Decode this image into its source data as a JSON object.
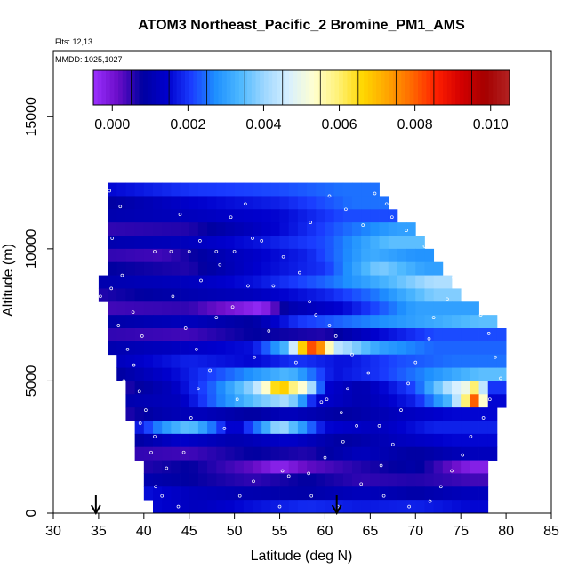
{
  "chart_data": {
    "type": "heatmap",
    "title": "ATOM3 Northeast_Pacific_2 Bromine_PM1_AMS",
    "notes": [
      "Flts: 12,13",
      "MMDD: 1025,1027"
    ],
    "xlabel": "Latitude (deg N)",
    "ylabel": "Altitude (m)",
    "xlim": [
      30,
      85
    ],
    "ylim": [
      0,
      17500
    ],
    "x_ticks": [
      "30",
      "35",
      "40",
      "45",
      "50",
      "55",
      "60",
      "65",
      "70",
      "75",
      "80",
      "85"
    ],
    "y_ticks": [
      "0",
      "5000",
      "10000",
      "15000"
    ],
    "colorbar": {
      "min": -0.0005,
      "max": 0.0105,
      "ticks": [
        "0.000",
        "0.002",
        "0.004",
        "0.006",
        "0.008",
        "0.010"
      ],
      "colors": [
        "#9b30ff",
        "#6a0dc8",
        "#0000a0",
        "#0000cd",
        "#1a3cff",
        "#1e90ff",
        "#4db8ff",
        "#9fd8ff",
        "#d8f0ff",
        "#ffffd0",
        "#fff176",
        "#ffd700",
        "#ffa500",
        "#ff6a00",
        "#ff2000",
        "#d40000",
        "#a50000",
        "#b22222"
      ]
    },
    "arrows_at_latitude": [
      34.7,
      61.3
    ],
    "lat_bin_width": 1,
    "alt_bin_height": 500,
    "rows": [
      {
        "alt": 12250,
        "lat_min": 36,
        "lat_max": 66,
        "values": [
          [
            36,
            0.0015
          ],
          [
            45,
            0.002
          ],
          [
            55,
            0.0022
          ],
          [
            62,
            0.0025
          ]
        ]
      },
      {
        "alt": 11750,
        "lat_min": 36,
        "lat_max": 67,
        "values": [
          [
            36,
            0.0008
          ],
          [
            45,
            0.0014
          ],
          [
            55,
            0.0018
          ],
          [
            63,
            0.0025
          ]
        ]
      },
      {
        "alt": 11250,
        "lat_min": 36,
        "lat_max": 68,
        "values": [
          [
            36,
            0.001
          ],
          [
            45,
            0.0012
          ],
          [
            55,
            0.0015
          ],
          [
            62,
            0.0022
          ]
        ]
      },
      {
        "alt": 10750,
        "lat_min": 36,
        "lat_max": 70,
        "values": [
          [
            36,
            0.0005
          ],
          [
            45,
            0.0006
          ],
          [
            55,
            0.0015
          ],
          [
            62,
            0.0024
          ],
          [
            68,
            0.003
          ]
        ]
      },
      {
        "alt": 10250,
        "lat_min": 36,
        "lat_max": 71,
        "values": [
          [
            36,
            0.001
          ],
          [
            45,
            0.0012
          ],
          [
            52,
            0.0016
          ],
          [
            60,
            0.0022
          ],
          [
            67,
            0.0035
          ]
        ]
      },
      {
        "alt": 9750,
        "lat_min": 36,
        "lat_max": 72,
        "values": [
          [
            36,
            0.0005
          ],
          [
            42,
            0.0004
          ],
          [
            50,
            0.0012
          ],
          [
            58,
            0.0018
          ],
          [
            65,
            0.0032
          ],
          [
            70,
            0.0028
          ]
        ]
      },
      {
        "alt": 9250,
        "lat_min": 36,
        "lat_max": 73,
        "values": [
          [
            36,
            0.0008
          ],
          [
            45,
            0.0006
          ],
          [
            52,
            0.0014
          ],
          [
            60,
            0.002
          ],
          [
            66,
            0.0038
          ],
          [
            71,
            0.003
          ]
        ]
      },
      {
        "alt": 8750,
        "lat_min": 35,
        "lat_max": 74,
        "values": [
          [
            35,
            0.001
          ],
          [
            45,
            0.0012
          ],
          [
            52,
            0.0016
          ],
          [
            60,
            0.0024
          ],
          [
            66,
            0.0032
          ],
          [
            72,
            0.0042
          ]
        ]
      },
      {
        "alt": 8250,
        "lat_min": 35,
        "lat_max": 75,
        "values": [
          [
            35,
            0.0006
          ],
          [
            45,
            0.001
          ],
          [
            52,
            0.0012
          ],
          [
            60,
            0.0018
          ],
          [
            66,
            0.0026
          ],
          [
            72,
            0.0038
          ]
        ]
      },
      {
        "alt": 7750,
        "lat_min": 36,
        "lat_max": 77,
        "values": [
          [
            36,
            0.0004
          ],
          [
            45,
            0.0005
          ],
          [
            53,
            -0.0004
          ],
          [
            56,
            0.001
          ],
          [
            62,
            0.0015
          ],
          [
            70,
            0.003
          ]
        ]
      },
      {
        "alt": 7250,
        "lat_min": 36,
        "lat_max": 79,
        "values": [
          [
            36,
            0.0009
          ],
          [
            45,
            0.0012
          ],
          [
            52,
            0.0008
          ],
          [
            57,
            0.002
          ],
          [
            63,
            0.0025
          ],
          [
            70,
            0.003
          ],
          [
            77,
            0.0035
          ]
        ]
      },
      {
        "alt": 6750,
        "lat_min": 36,
        "lat_max": 80,
        "values": [
          [
            36,
            0.0005
          ],
          [
            45,
            0.0004
          ],
          [
            52,
            0.0008
          ],
          [
            60,
            0.0006
          ],
          [
            66,
            0.0015
          ],
          [
            72,
            0.0022
          ]
        ]
      },
      {
        "alt": 6250,
        "lat_min": 36,
        "lat_max": 80,
        "values": [
          [
            36,
            0.001
          ],
          [
            45,
            0.0013
          ],
          [
            52,
            0.0016
          ],
          [
            56,
            0.0035
          ],
          [
            58,
            0.0078
          ],
          [
            59,
            0.0085
          ],
          [
            60,
            0.0065
          ],
          [
            61,
            0.0045
          ],
          [
            66,
            0.003
          ],
          [
            72,
            0.0024
          ]
        ]
      },
      {
        "alt": 5750,
        "lat_min": 37,
        "lat_max": 80,
        "values": [
          [
            37,
            0.0012
          ],
          [
            45,
            0.0018
          ],
          [
            52,
            0.0015
          ],
          [
            57,
            0.002
          ],
          [
            62,
            0.0016
          ],
          [
            68,
            0.0022
          ],
          [
            74,
            0.0025
          ]
        ]
      },
      {
        "alt": 5250,
        "lat_min": 37,
        "lat_max": 80,
        "values": [
          [
            37,
            0.0008
          ],
          [
            44,
            0.0016
          ],
          [
            50,
            0.0025
          ],
          [
            56,
            0.0034
          ],
          [
            61,
            0.0016
          ],
          [
            66,
            0.002
          ],
          [
            72,
            0.0028
          ],
          [
            77,
            0.0035
          ]
        ]
      },
      {
        "alt": 4750,
        "lat_min": 38,
        "lat_max": 80,
        "values": [
          [
            38,
            0.0006
          ],
          [
            43,
            0.0012
          ],
          [
            48,
            0.0025
          ],
          [
            52,
            0.004
          ],
          [
            54,
            0.0058
          ],
          [
            55,
            0.0072
          ],
          [
            56,
            0.0062
          ],
          [
            58,
            0.005
          ],
          [
            60,
            0.0015
          ],
          [
            64,
            0.001
          ],
          [
            70,
            0.0022
          ],
          [
            74,
            0.0045
          ],
          [
            76,
            0.0052
          ],
          [
            77,
            0.0068
          ],
          [
            78,
            0.002
          ]
        ]
      },
      {
        "alt": 4250,
        "lat_min": 38,
        "lat_max": 80,
        "values": [
          [
            38,
            0.001
          ],
          [
            44,
            0.0012
          ],
          [
            48,
            0.0025
          ],
          [
            52,
            0.0035
          ],
          [
            56,
            0.0042
          ],
          [
            59,
            0.0015
          ],
          [
            64,
            0.001
          ],
          [
            70,
            0.0018
          ],
          [
            74,
            0.0035
          ],
          [
            76,
            0.0068
          ],
          [
            77,
            0.0092
          ],
          [
            78,
            0.0015
          ]
        ]
      },
      {
        "alt": 3750,
        "lat_min": 38,
        "lat_max": 79,
        "values": [
          [
            38,
            0.0006
          ],
          [
            42,
            0.001
          ],
          [
            46,
            0.0012
          ],
          [
            52,
            0.0008
          ],
          [
            56,
            0.0012
          ],
          [
            62,
            0.0008
          ],
          [
            68,
            0.0012
          ],
          [
            74,
            0.0015
          ]
        ]
      },
      {
        "alt": 3250,
        "lat_min": 39,
        "lat_max": 79,
        "values": [
          [
            39,
            0.0015
          ],
          [
            42,
            0.0028
          ],
          [
            45,
            0.0036
          ],
          [
            47,
            0.0028
          ],
          [
            50,
            0.0012
          ],
          [
            53,
            0.0028
          ],
          [
            55,
            0.0042
          ],
          [
            57,
            0.0032
          ],
          [
            60,
            0.0015
          ],
          [
            66,
            0.0012
          ],
          [
            72,
            0.0018
          ]
        ]
      },
      {
        "alt": 2750,
        "lat_min": 39,
        "lat_max": 79,
        "values": [
          [
            39,
            0.0008
          ],
          [
            44,
            0.0014
          ],
          [
            50,
            0.001
          ],
          [
            56,
            0.0014
          ],
          [
            62,
            0.0008
          ],
          [
            68,
            0.0012
          ],
          [
            74,
            0.0015
          ]
        ]
      },
      {
        "alt": 2250,
        "lat_min": 39,
        "lat_max": 79,
        "values": [
          [
            39,
            0.0005
          ],
          [
            45,
            0.0004
          ],
          [
            52,
            0.0008
          ],
          [
            58,
            0.0006
          ],
          [
            64,
            0.0012
          ],
          [
            70,
            0.0008
          ],
          [
            76,
            0.0012
          ]
        ]
      },
      {
        "alt": 1750,
        "lat_min": 40,
        "lat_max": 78,
        "values": [
          [
            40,
            0.0006
          ],
          [
            45,
            0.0008
          ],
          [
            52,
            0.0002
          ],
          [
            55,
            -0.0003
          ],
          [
            58,
            0.0002
          ],
          [
            64,
            0.0006
          ],
          [
            70,
            0.0009
          ],
          [
            76,
            -0.0002
          ]
        ]
      },
      {
        "alt": 1250,
        "lat_min": 40,
        "lat_max": 78,
        "values": [
          [
            40,
            0.001
          ],
          [
            45,
            0.0008
          ],
          [
            52,
            0.0005
          ],
          [
            58,
            0.0008
          ],
          [
            64,
            0.0005
          ],
          [
            70,
            0.0006
          ],
          [
            76,
            0.0004
          ]
        ]
      },
      {
        "alt": 750,
        "lat_min": 40,
        "lat_max": 78,
        "values": [
          [
            40,
            0.0016
          ],
          [
            45,
            0.0012
          ],
          [
            52,
            0.001
          ],
          [
            58,
            0.0009
          ],
          [
            64,
            0.0012
          ],
          [
            70,
            0.0009
          ],
          [
            76,
            0.0012
          ]
        ]
      },
      {
        "alt": 250,
        "lat_min": 41,
        "lat_max": 78,
        "values": [
          [
            41,
            0.0015
          ],
          [
            46,
            0.0012
          ],
          [
            52,
            0.0016
          ],
          [
            58,
            0.0019
          ],
          [
            64,
            0.0017
          ],
          [
            70,
            0.0018
          ],
          [
            76,
            0.0015
          ]
        ]
      }
    ],
    "sample_points": [
      [
        36.2,
        12200
      ],
      [
        37.4,
        11600
      ],
      [
        36.5,
        10400
      ],
      [
        35.8,
        9800
      ],
      [
        37.6,
        9000
      ],
      [
        36.4,
        8500
      ],
      [
        35.2,
        8200
      ],
      [
        38.8,
        7600
      ],
      [
        37.2,
        7100
      ],
      [
        39.8,
        6700
      ],
      [
        38.2,
        6200
      ],
      [
        38.9,
        5600
      ],
      [
        37.8,
        5000
      ],
      [
        39.5,
        4600
      ],
      [
        40.2,
        3900
      ],
      [
        39.6,
        3400
      ],
      [
        41.2,
        2900
      ],
      [
        40.8,
        2300
      ],
      [
        42.5,
        1700
      ],
      [
        41.3,
        1000
      ],
      [
        42.0,
        650
      ],
      [
        43.8,
        250
      ],
      [
        44.4,
        2300
      ],
      [
        45.2,
        3600
      ],
      [
        46.0,
        4700
      ],
      [
        47.3,
        5400
      ],
      [
        45.8,
        6200
      ],
      [
        44.6,
        7000
      ],
      [
        48.0,
        7400
      ],
      [
        43.2,
        8200
      ],
      [
        46.3,
        8800
      ],
      [
        48.4,
        9400
      ],
      [
        41.2,
        9900
      ],
      [
        43.0,
        9900
      ],
      [
        45.0,
        9900
      ],
      [
        48.0,
        9900
      ],
      [
        50.0,
        9900
      ],
      [
        52.0,
        10400
      ],
      [
        53.0,
        10300
      ],
      [
        49.6,
        11200
      ],
      [
        51.2,
        11700
      ],
      [
        55.4,
        9700
      ],
      [
        57.2,
        9100
      ],
      [
        58.3,
        8000
      ],
      [
        59.0,
        7500
      ],
      [
        60.5,
        7100
      ],
      [
        61.2,
        6700
      ],
      [
        63.0,
        6000
      ],
      [
        64.8,
        5300
      ],
      [
        62.5,
        4700
      ],
      [
        60.2,
        4300
      ],
      [
        61.8,
        3800
      ],
      [
        63.5,
        3300
      ],
      [
        62.0,
        2700
      ],
      [
        60.0,
        2100
      ],
      [
        58.2,
        1500
      ],
      [
        56.0,
        1400
      ],
      [
        55.3,
        1600
      ],
      [
        52.1,
        1200
      ],
      [
        50.6,
        650
      ],
      [
        55.0,
        250
      ],
      [
        58.5,
        650
      ],
      [
        61.4,
        250
      ],
      [
        64.0,
        1100
      ],
      [
        66.2,
        1800
      ],
      [
        67.5,
        2600
      ],
      [
        66.0,
        3300
      ],
      [
        68.4,
        3900
      ],
      [
        69.2,
        4900
      ],
      [
        70.0,
        5700
      ],
      [
        71.5,
        6600
      ],
      [
        72.0,
        7400
      ],
      [
        73.5,
        8100
      ],
      [
        74.2,
        8900
      ],
      [
        75.6,
        9500
      ],
      [
        76.4,
        8300
      ],
      [
        77.2,
        7500
      ],
      [
        78.1,
        6800
      ],
      [
        78.8,
        5900
      ],
      [
        79.4,
        5100
      ],
      [
        78.2,
        4300
      ],
      [
        77.5,
        3600
      ],
      [
        76.1,
        2900
      ],
      [
        75.2,
        2200
      ],
      [
        74.0,
        1600
      ],
      [
        72.8,
        1000
      ],
      [
        71.6,
        450
      ],
      [
        69.3,
        250
      ],
      [
        66.5,
        650
      ],
      [
        64.2,
        10900
      ],
      [
        65.5,
        12100
      ],
      [
        66.8,
        11700
      ],
      [
        67.4,
        11200
      ],
      [
        69.0,
        10700
      ],
      [
        71.0,
        10100
      ],
      [
        72.5,
        9600
      ],
      [
        60.5,
        12000
      ],
      [
        62.3,
        11500
      ],
      [
        58.4,
        11000
      ],
      [
        54.3,
        8600
      ],
      [
        56.8,
        5700
      ],
      [
        59.6,
        4200
      ],
      [
        48.9,
        3200
      ],
      [
        50.3,
        4300
      ],
      [
        52.2,
        5900
      ],
      [
        53.8,
        6900
      ],
      [
        49.8,
        7800
      ],
      [
        51.5,
        8600
      ],
      [
        46.2,
        10300
      ],
      [
        44.0,
        11300
      ]
    ]
  }
}
